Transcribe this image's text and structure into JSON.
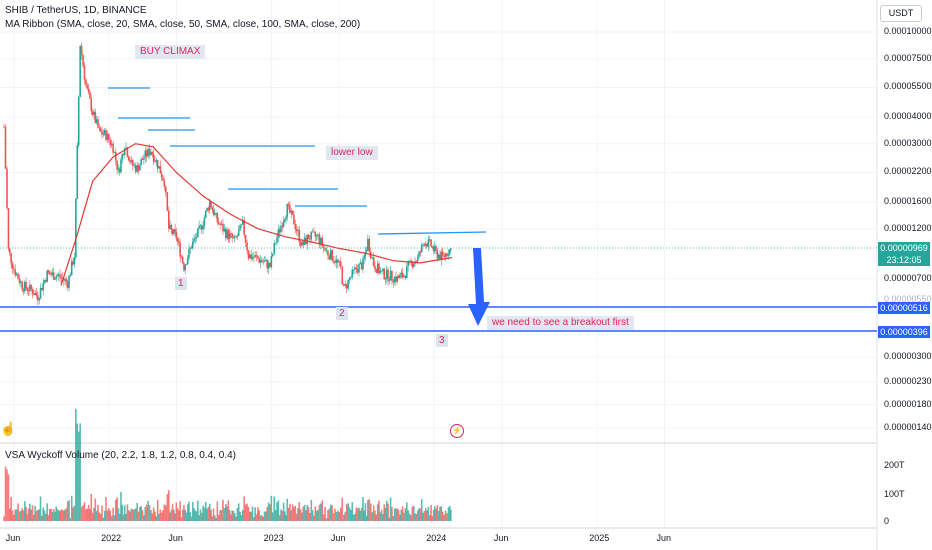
{
  "header": {
    "symbol_line": "SHIB / TetherUS, 1D, BINANCE",
    "indicator_line": "MA Ribbon (SMA, close, 20, SMA, close, 50, SMA, close, 100, SMA, close, 200)",
    "volume_line": "VSA Wyckoff Volume (20, 2.2, 1.8, 1.2, 0.8, 0.4, 0.4)"
  },
  "currency_button": "USDT",
  "annotations": {
    "buy_climax": "BUY CLIMAX",
    "lower_low": "lower low",
    "breakout": "we need to see a breakout first",
    "n1": "1",
    "n2": "2",
    "n3": "3"
  },
  "price_labels": {
    "current": "0.00000969",
    "countdown": "23:12:05",
    "support1": "0.00000516",
    "support2": "0.00000396",
    "hidden": "0.00000550"
  },
  "y_ticks": [
    "0.00010000",
    "0.00007500",
    "0.00005500",
    "0.00004000",
    "0.00003000",
    "0.00002200",
    "0.00001600",
    "0.00001200",
    "0.00000700",
    "0.00000300",
    "0.00000230",
    "0.00000180",
    "0.00000140"
  ],
  "volume_ticks": [
    "200T",
    "100T",
    "0"
  ],
  "x_ticks": [
    "Jun",
    "2022",
    "Jun",
    "2023",
    "Jun",
    "2024",
    "Jun",
    "2025",
    "Jun"
  ],
  "colors": {
    "up": "#26a69a",
    "down": "#ef5350",
    "ma": "#e53935",
    "trend": "#2196f3",
    "support": "#2962ff",
    "label_bg": "#e3e7f1",
    "label_text": "#e0245e"
  },
  "chart_data": {
    "type": "candlestick",
    "scale": "log",
    "x_range": [
      "2021-05",
      "2025-08"
    ],
    "series": [
      {
        "values": [
          [
            "2021-05-10",
            3.6e-05
          ],
          [
            "2021-05-20",
            9.5e-06
          ],
          [
            "2021-06-01",
            7.8e-06
          ],
          [
            "2021-06-20",
            6.5e-06
          ],
          [
            "2021-07-10",
            6.2e-06
          ],
          [
            "2021-07-25",
            5.8e-06
          ],
          [
            "2021-08-15",
            7.4e-06
          ],
          [
            "2021-09-10",
            7.2e-06
          ],
          [
            "2021-09-30",
            6.7e-06
          ],
          [
            "2021-10-15",
            9e-06
          ],
          [
            "2021-10-28",
            8.8e-05
          ],
          [
            "2021-11-10",
            5.6e-05
          ],
          [
            "2021-11-25",
            4.2e-05
          ],
          [
            "2021-12-10",
            3.4e-05
          ],
          [
            "2021-12-25",
            3.3e-05
          ],
          [
            "2022-01-10",
            2.9e-05
          ],
          [
            "2022-01-22",
            2.2e-05
          ],
          [
            "2022-02-05",
            3e-05
          ],
          [
            "2022-02-20",
            2.4e-05
          ],
          [
            "2022-03-05",
            2.3e-05
          ],
          [
            "2022-03-20",
            2.6e-05
          ],
          [
            "2022-04-05",
            2.8e-05
          ],
          [
            "2022-04-20",
            2.4e-05
          ],
          [
            "2022-05-05",
            2e-05
          ],
          [
            "2022-05-15",
            1.2e-05
          ],
          [
            "2022-06-01",
            1.1e-05
          ],
          [
            "2022-06-18",
            8e-06
          ],
          [
            "2022-07-05",
            1e-05
          ],
          [
            "2022-07-25",
            1.2e-05
          ],
          [
            "2022-08-15",
            1.6e-05
          ],
          [
            "2022-09-01",
            1.3e-05
          ],
          [
            "2022-09-20",
            1.15e-05
          ],
          [
            "2022-10-10",
            1.05e-05
          ],
          [
            "2022-10-28",
            1.25e-05
          ],
          [
            "2022-11-10",
            9e-06
          ],
          [
            "2022-11-25",
            8.8e-06
          ],
          [
            "2022-12-10",
            8.5e-06
          ],
          [
            "2022-12-28",
            8e-06
          ],
          [
            "2023-01-10",
            1.05e-05
          ],
          [
            "2023-01-25",
            1.3e-05
          ],
          [
            "2023-02-05",
            1.5e-05
          ],
          [
            "2023-02-20",
            1.3e-05
          ],
          [
            "2023-03-10",
            1e-05
          ],
          [
            "2023-03-25",
            1.1e-05
          ],
          [
            "2023-04-15",
            1.1e-05
          ],
          [
            "2023-05-01",
            9.5e-06
          ],
          [
            "2023-05-20",
            8.8e-06
          ],
          [
            "2023-06-05",
            7.8e-06
          ],
          [
            "2023-06-12",
            6.2e-06
          ],
          [
            "2023-06-25",
            7e-06
          ],
          [
            "2023-07-10",
            7.8e-06
          ],
          [
            "2023-07-25",
            8.2e-06
          ],
          [
            "2023-08-05",
            1.05e-05
          ],
          [
            "2023-08-18",
            8.2e-06
          ],
          [
            "2023-09-05",
            7.4e-06
          ],
          [
            "2023-09-25",
            7.2e-06
          ],
          [
            "2023-10-10",
            7e-06
          ],
          [
            "2023-10-25",
            7.3e-06
          ],
          [
            "2023-11-10",
            8.3e-06
          ],
          [
            "2023-11-25",
            8.7e-06
          ],
          [
            "2023-12-10",
            1.05e-05
          ],
          [
            "2023-12-25",
            1e-05
          ],
          [
            "2024-01-05",
            9.2e-06
          ],
          [
            "2024-01-20",
            8.8e-06
          ],
          [
            "2024-02-02",
            9.5e-06
          ],
          [
            "2024-02-10",
            9.69e-06
          ]
        ]
      },
      {
        "name": "",
        "type": "ma",
        "values": [
          [
            "2021-09-15",
            6.5e-06
          ],
          [
            "2021-10-20",
            1.1e-05
          ],
          [
            "2021-11-25",
            2e-05
          ],
          [
            "2022-01-10",
            2.6e-05
          ],
          [
            "2022-03-01",
            3e-05
          ],
          [
            "2022-04-10",
            2.9e-05
          ],
          [
            "2022-06-01",
            2.2e-05
          ],
          [
            "2022-08-01",
            1.7e-05
          ],
          [
            "2022-10-01",
            1.4e-05
          ],
          [
            "2022-12-01",
            1.2e-05
          ],
          [
            "2023-02-01",
            1.1e-05
          ],
          [
            "2023-04-01",
            1.04e-05
          ],
          [
            "2023-06-01",
            9.7e-06
          ],
          [
            "2023-08-01",
            9.2e-06
          ],
          [
            "2023-10-01",
            8.5e-06
          ],
          [
            "2023-12-01",
            8.3e-06
          ],
          [
            "2024-02-10",
            8.8e-06
          ]
        ]
      }
    ],
    "horizontal_lines": [
      5.16e-06,
      3.96e-06
    ],
    "volume": {
      "unit": "T",
      "ylim": [
        0,
        230
      ]
    }
  }
}
